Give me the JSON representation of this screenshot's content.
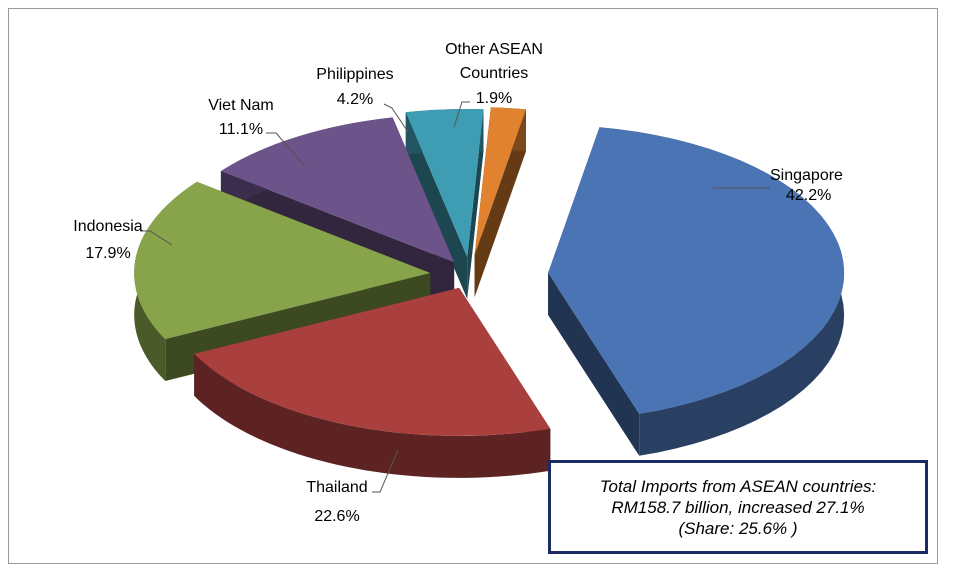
{
  "chart_data": {
    "type": "pie",
    "style": "3d-exploded",
    "slices": [
      {
        "label": "Singapore",
        "value_label": "42.2%",
        "value": 42.2,
        "color": "#4a74b3"
      },
      {
        "label": "Thailand",
        "value_label": "22.6%",
        "value": 22.6,
        "color": "#a9403e"
      },
      {
        "label": "Indonesia",
        "value_label": "17.9%",
        "value": 17.9,
        "color": "#87a44a"
      },
      {
        "label": "Viet Nam",
        "value_label": "11.1%",
        "value": 11.1,
        "color": "#6c548a"
      },
      {
        "label": "Philippines",
        "value_label": "4.2%",
        "value": 4.2,
        "color": "#3f9db3"
      },
      {
        "label": "Other ASEAN Countries",
        "label_lines": [
          "Other ASEAN",
          "Countries"
        ],
        "value_label": "1.9%",
        "value": 1.9,
        "color": "#e0822f"
      }
    ]
  },
  "summary": {
    "line1": "Total Imports from ASEAN countries:",
    "line2": "RM158.7 billion, increased 27.1%",
    "line3": "(Share: 25.6% )"
  }
}
